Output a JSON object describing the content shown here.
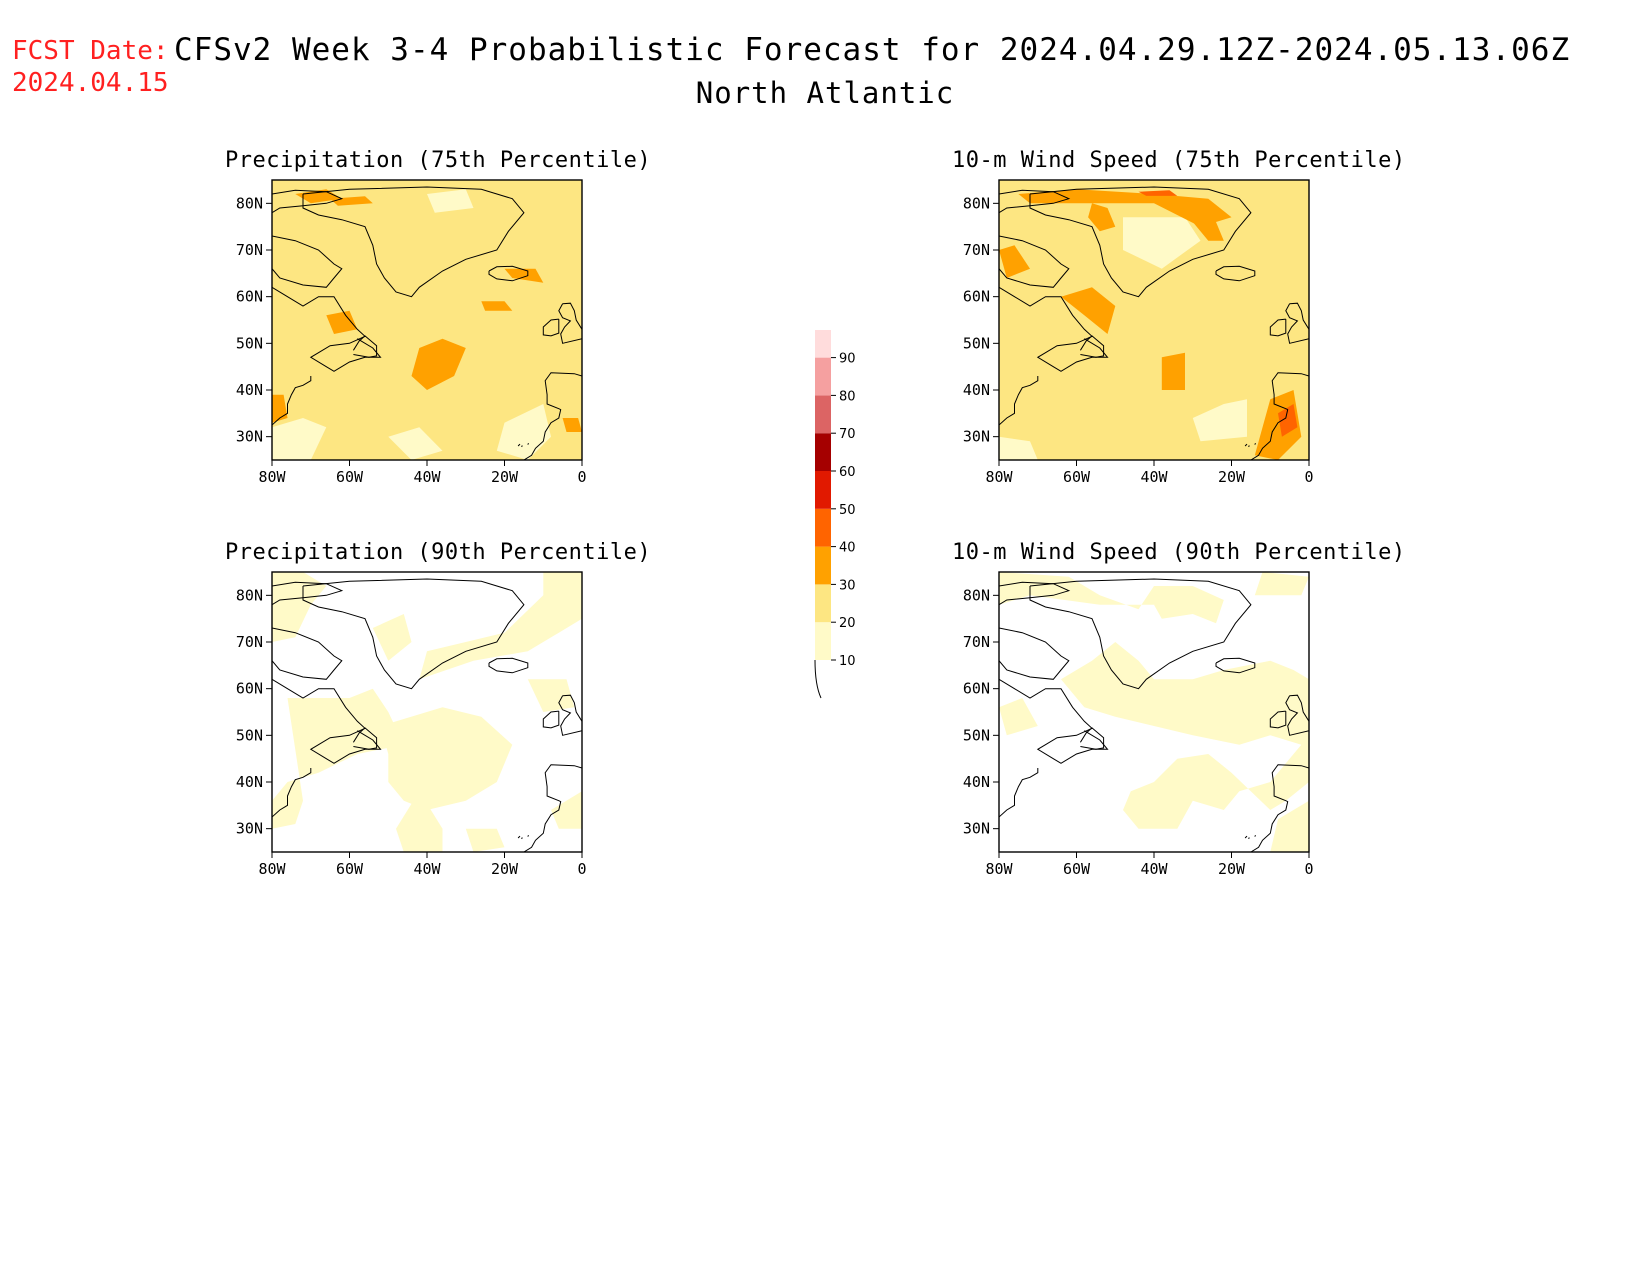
{
  "header": {
    "fcst_label": "FCST Date:",
    "fcst_date": "2024.04.15",
    "title": "CFSv2 Week 3-4 Probabilistic Forecast for 2024.04.29.12Z-2024.05.13.06Z",
    "region": "North Atlantic"
  },
  "axes": {
    "x_ticks": [
      "80W",
      "60W",
      "40W",
      "20W",
      "0"
    ],
    "y_ticks": [
      "80N",
      "70N",
      "60N",
      "50N",
      "40N",
      "30N"
    ]
  },
  "colorbar": {
    "levels": [
      "10",
      "20",
      "30",
      "40",
      "50",
      "60",
      "70",
      "80",
      "90"
    ],
    "colors": [
      "#fffac8",
      "#fde682",
      "#ffa100",
      "#ff6400",
      "#e11900",
      "#a50000",
      "#dc6464",
      "#f5a0a0",
      "#ffdcdc"
    ]
  },
  "panels": [
    {
      "title": "Precipitation (75th Percentile)",
      "base_color": "#fde682",
      "pattern": "p75"
    },
    {
      "title": "10-m Wind Speed (75th Percentile)",
      "base_color": "#fde682",
      "pattern": "w75"
    },
    {
      "title": "Precipitation (90th Percentile)",
      "base_color": "#ffffff",
      "pattern": "p90"
    },
    {
      "title": "10-m Wind Speed (90th Percentile)",
      "base_color": "#ffffff",
      "pattern": "w90"
    }
  ]
}
